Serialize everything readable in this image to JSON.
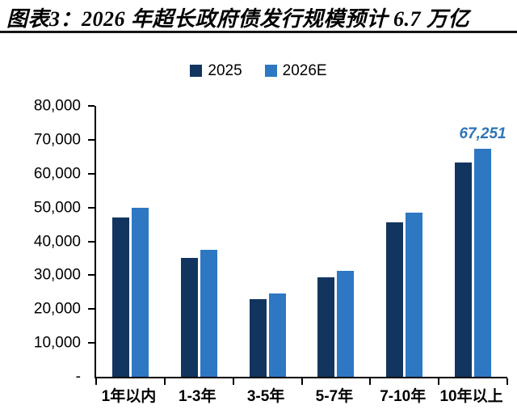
{
  "chart_data": {
    "type": "bar",
    "title": "图表3：2026 年超长政府债发行规模预计 6.7 万亿",
    "categories": [
      "1年以内",
      "1-3年",
      "3-5年",
      "5-7年",
      "7-10年",
      "10年以上"
    ],
    "series": [
      {
        "name": "2025",
        "color": "#12355f",
        "values": [
          47000,
          35200,
          23000,
          29400,
          45600,
          63300
        ]
      },
      {
        "name": "2026E",
        "color": "#2e77c3",
        "values": [
          50000,
          37500,
          24700,
          31300,
          48400,
          67251
        ]
      }
    ],
    "xlabel": "",
    "ylabel": "",
    "ylim": [
      0,
      80000
    ],
    "yticks": [
      {
        "value": 0,
        "label": "-"
      },
      {
        "value": 10000,
        "label": "10,000"
      },
      {
        "value": 20000,
        "label": "20,000"
      },
      {
        "value": 30000,
        "label": "30,000"
      },
      {
        "value": 40000,
        "label": "40,000"
      },
      {
        "value": 50000,
        "label": "50,000"
      },
      {
        "value": 60000,
        "label": "60,000"
      },
      {
        "value": 70000,
        "label": "70,000"
      },
      {
        "value": 80000,
        "label": "80,000"
      }
    ],
    "grid": false,
    "legend_position": "top-center",
    "annotations": [
      {
        "series": "2026E",
        "category_index": 5,
        "text": "67,251",
        "color": "#2e75b6"
      }
    ],
    "axis_color": "#000000",
    "background": "#ffffff"
  }
}
